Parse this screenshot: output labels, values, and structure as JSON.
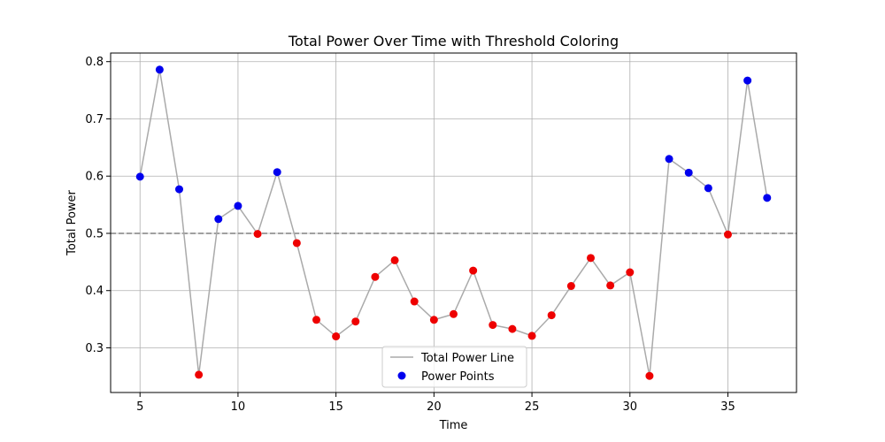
{
  "chart_data": {
    "type": "line",
    "title": "Total Power Over Time with Threshold Coloring",
    "xlabel": "Time",
    "ylabel": "Total Power",
    "xlim": [
      3.5,
      38.5
    ],
    "ylim": [
      0.222,
      0.815
    ],
    "xticks": [
      5,
      10,
      15,
      20,
      25,
      30,
      35
    ],
    "yticks": [
      0.3,
      0.4,
      0.5,
      0.6,
      0.7,
      0.8
    ],
    "grid": true,
    "threshold": 0.5,
    "legend_position": "bottom-center",
    "line_color": "#aaaaaa",
    "threshold_color": "#808080",
    "above_color": "#0000ee",
    "below_color": "#ee0000",
    "x": [
      5,
      6,
      7,
      8,
      9,
      10,
      11,
      12,
      13,
      14,
      15,
      16,
      17,
      18,
      19,
      20,
      21,
      22,
      23,
      24,
      25,
      26,
      27,
      28,
      29,
      30,
      31,
      32,
      33,
      34,
      35,
      36,
      37
    ],
    "y": [
      0.599,
      0.786,
      0.577,
      0.253,
      0.525,
      0.548,
      0.499,
      0.607,
      0.483,
      0.349,
      0.32,
      0.346,
      0.424,
      0.453,
      0.381,
      0.349,
      0.359,
      0.435,
      0.34,
      0.333,
      0.321,
      0.357,
      0.408,
      0.457,
      0.409,
      0.432,
      0.251,
      0.63,
      0.606,
      0.579,
      0.498,
      0.767,
      0.562
    ],
    "series": [
      {
        "name": "Total Power Line"
      },
      {
        "name": "Power Points"
      }
    ]
  }
}
